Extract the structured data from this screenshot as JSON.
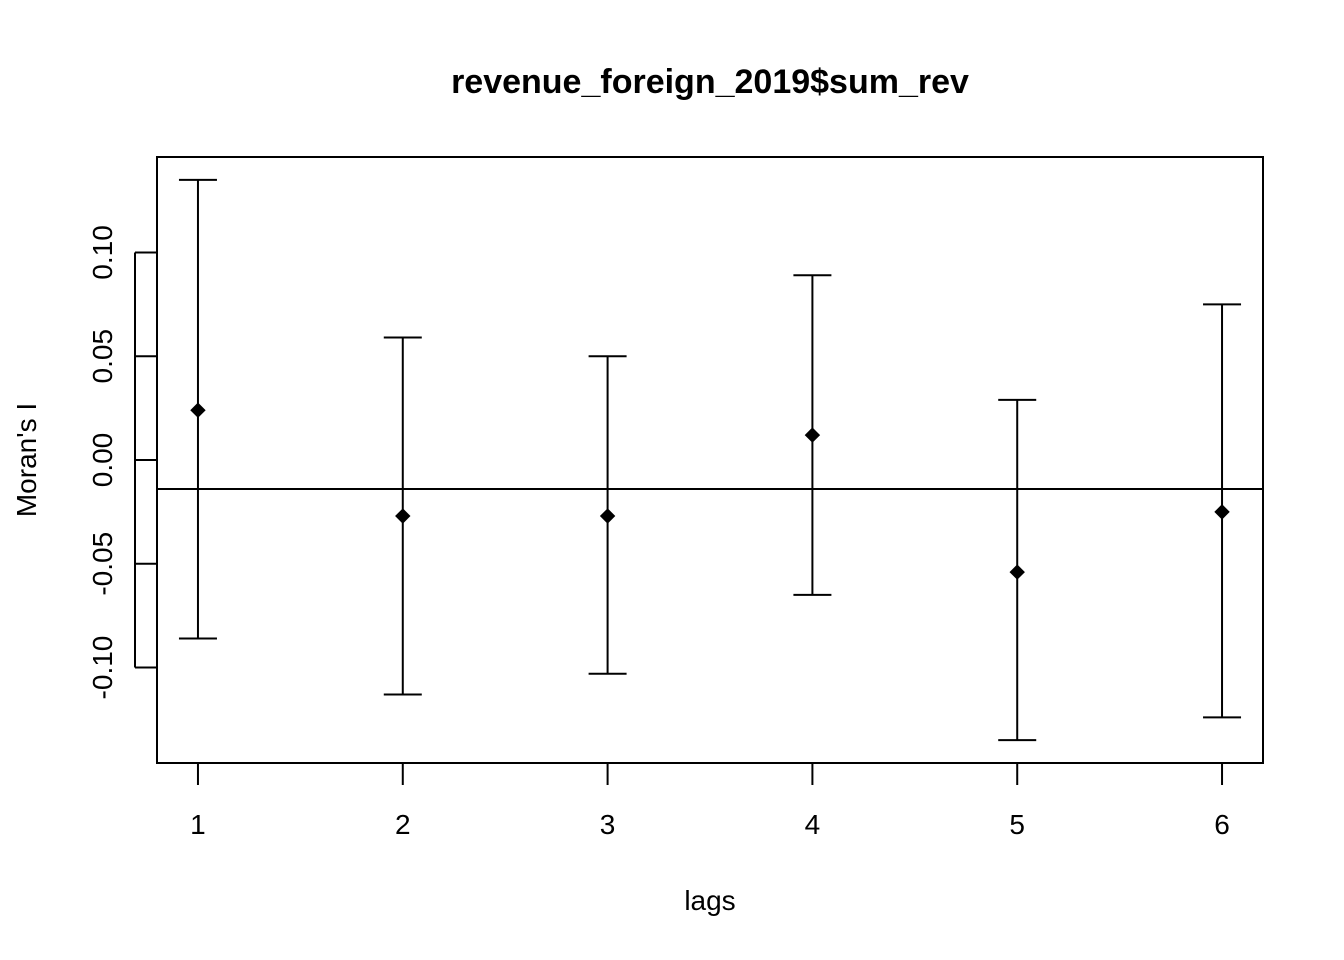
{
  "chart_data": {
    "type": "scatter",
    "title": "revenue_foreign_2019$sum_rev",
    "xlabel": "lags",
    "ylabel": "Moran's  I",
    "x": [
      1,
      2,
      3,
      4,
      5,
      6
    ],
    "estimate": [
      0.024,
      -0.027,
      -0.027,
      0.012,
      -0.054,
      -0.025
    ],
    "lower": [
      -0.086,
      -0.113,
      -0.103,
      -0.065,
      -0.135,
      -0.124
    ],
    "upper": [
      0.135,
      0.059,
      0.05,
      0.089,
      0.029,
      0.075
    ],
    "expected": -0.014,
    "xlim": [
      0.8,
      6.2
    ],
    "ylim": [
      -0.146,
      0.146
    ],
    "x_ticks": [
      1,
      2,
      3,
      4,
      5,
      6
    ],
    "x_tick_labels": [
      "1",
      "2",
      "3",
      "4",
      "5",
      "6"
    ],
    "y_ticks": [
      -0.1,
      -0.05,
      0,
      0.05,
      0.1
    ],
    "y_tick_labels": [
      "-0.10",
      "-0.05",
      "0.00",
      "0.05",
      "0.10"
    ],
    "grid": false,
    "legend": "none",
    "point_color": "#000000"
  }
}
